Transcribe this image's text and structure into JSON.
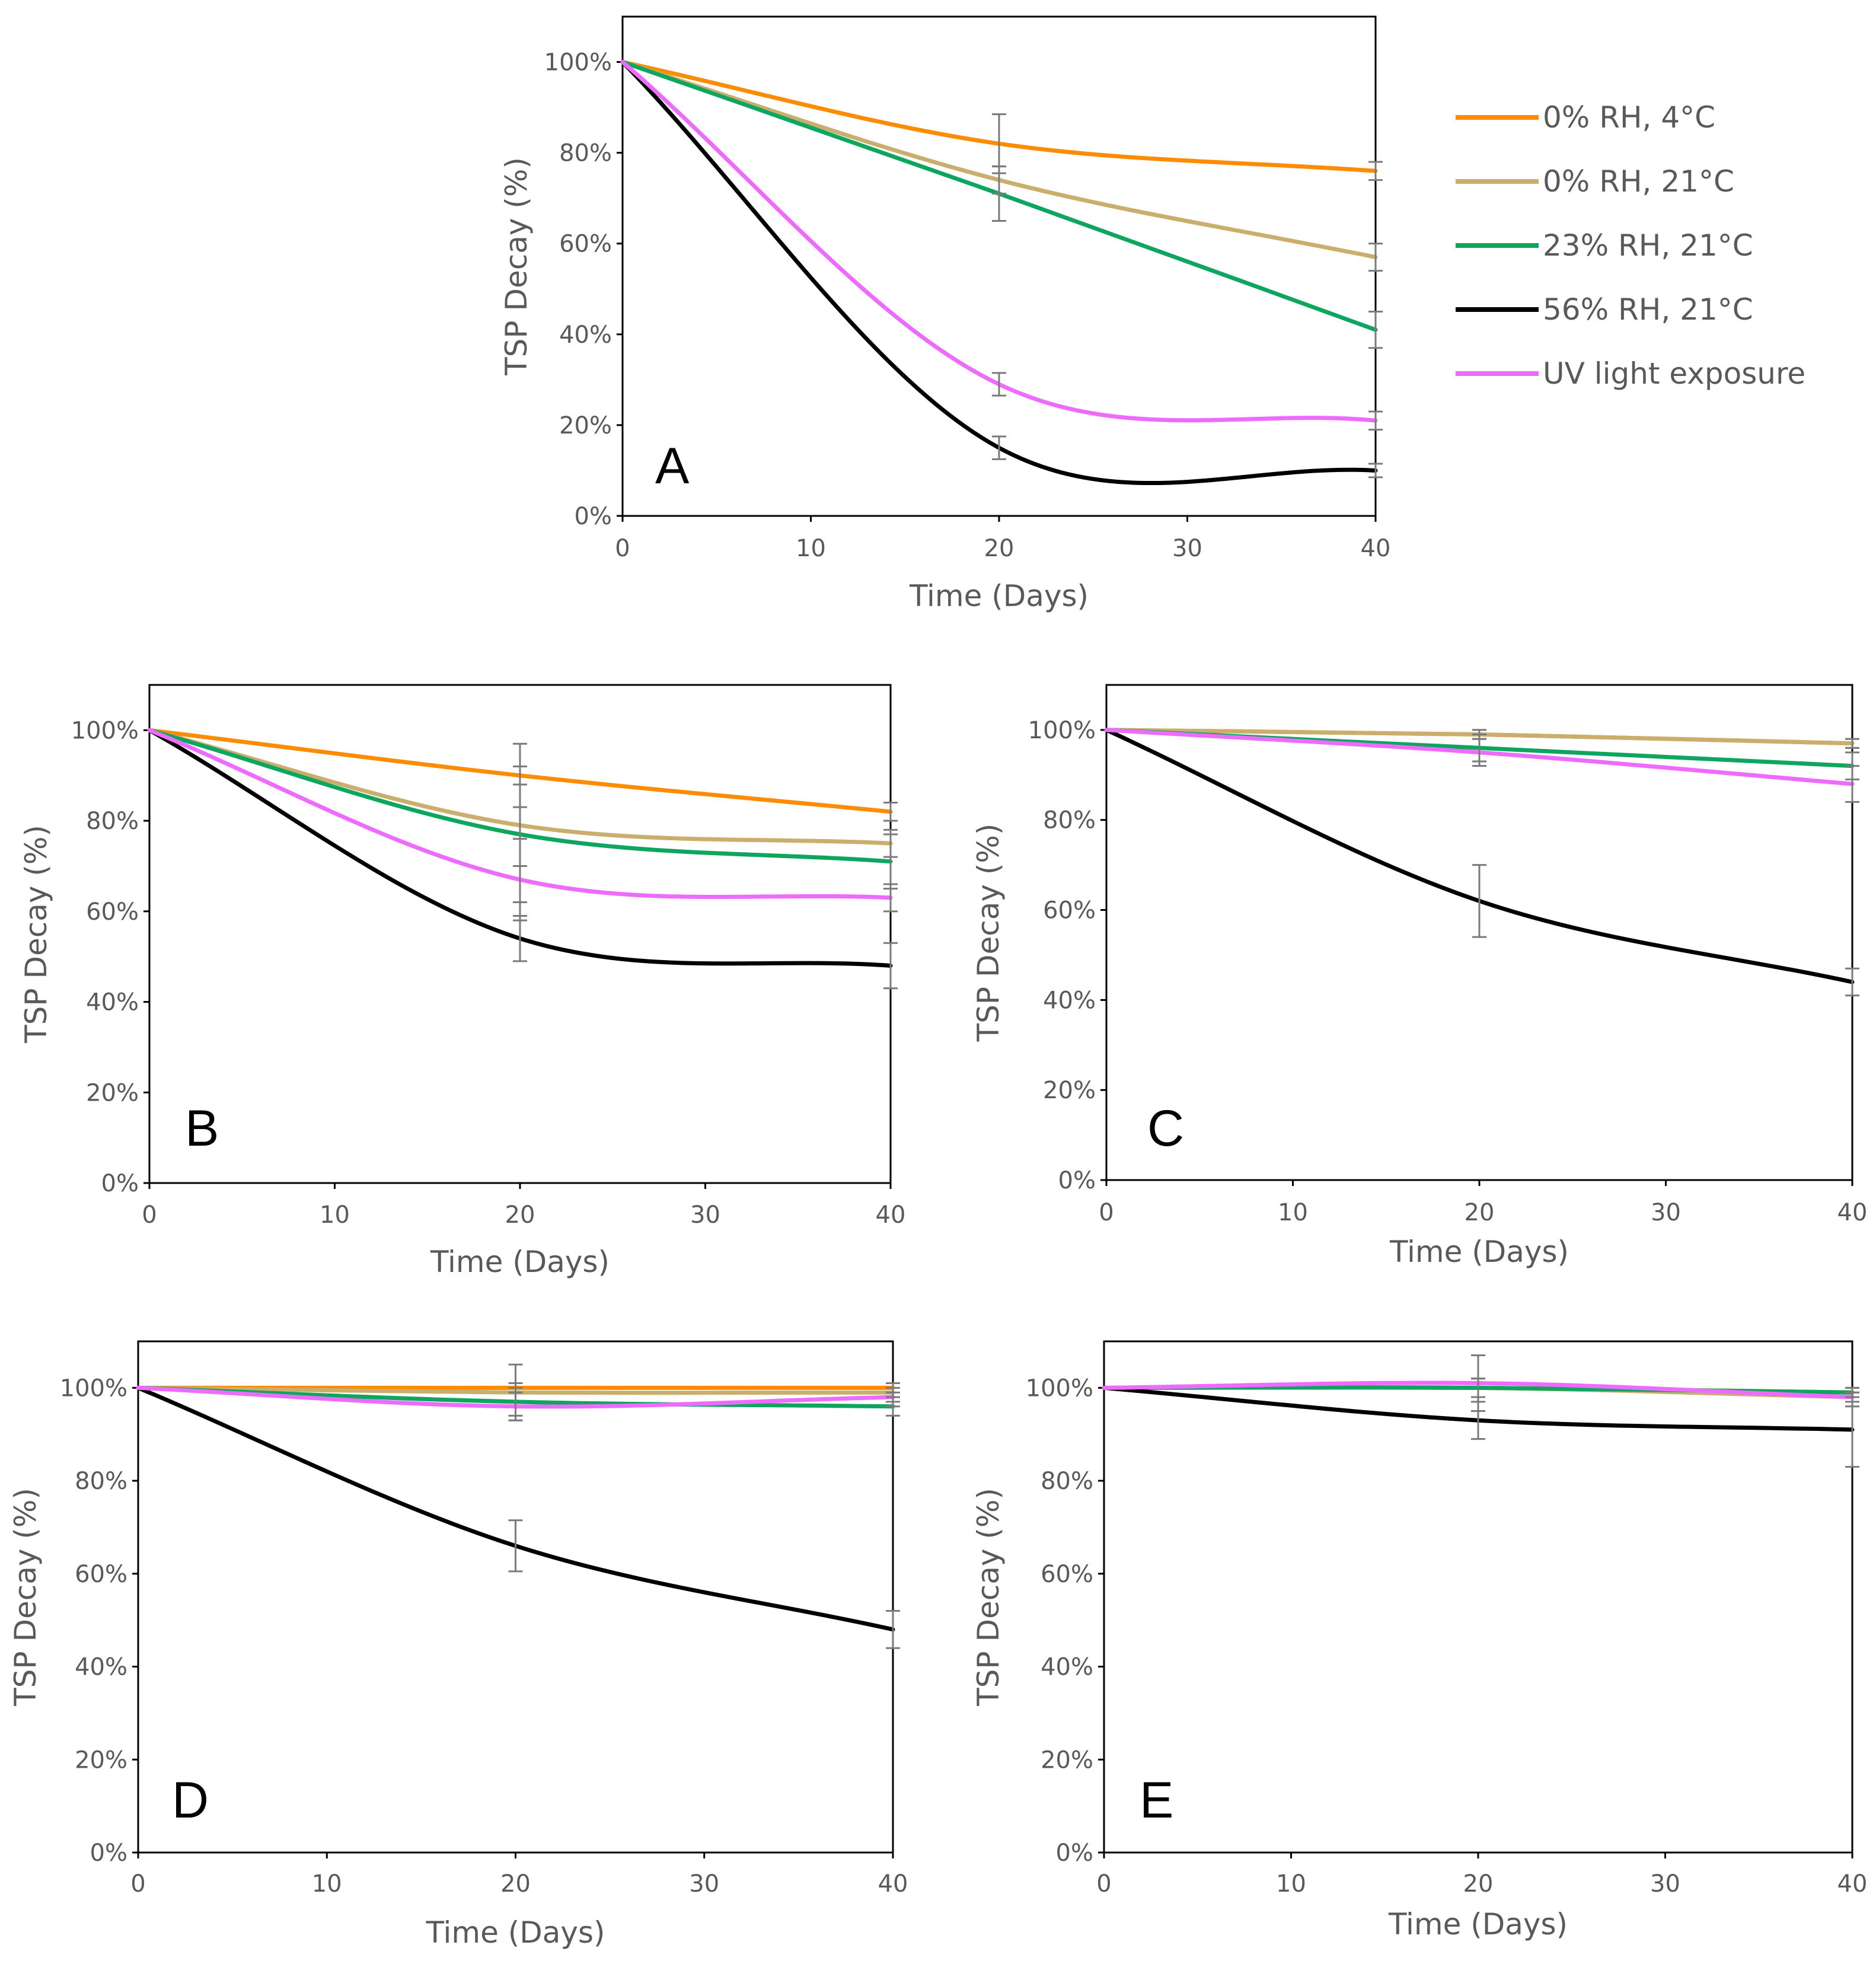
{
  "legend": [
    {
      "label": "0% RH, 4°C",
      "color": "#FF8C00"
    },
    {
      "label": "0% RH, 21°C",
      "color": "#C9AE6E"
    },
    {
      "label": "23% RH, 21°C",
      "color": "#0EA65E"
    },
    {
      "label": "56% RH, 21°C",
      "color": "#000000"
    },
    {
      "label": "UV light exposure",
      "color": "#EE6BFF"
    }
  ],
  "chart_data": [
    {
      "type": "line",
      "panel": "A",
      "xlabel": "Time (Days)",
      "ylabel": "TSP Decay (%)",
      "x_ticks": [
        "0",
        "10",
        "20",
        "30",
        "40"
      ],
      "y_ticks": [
        "0%",
        "20%",
        "40%",
        "60%",
        "80%",
        "100%"
      ],
      "xlim": [
        0,
        40
      ],
      "ylim": [
        0,
        110
      ],
      "x": [
        0,
        20,
        40
      ],
      "series": [
        {
          "name": "0% RH, 4°C",
          "color": "#FF8C00",
          "values": [
            100,
            82,
            76
          ],
          "errors": [
            0,
            6.5,
            2
          ]
        },
        {
          "name": "0% RH, 21°C",
          "color": "#C9AE6E",
          "values": [
            100,
            74,
            57
          ],
          "errors": [
            0,
            3,
            3
          ]
        },
        {
          "name": "23% RH, 21°C",
          "color": "#0EA65E",
          "values": [
            100,
            71,
            41
          ],
          "errors": [
            0,
            6,
            4
          ]
        },
        {
          "name": "56% RH, 21°C",
          "color": "#000000",
          "values": [
            100,
            15,
            10
          ],
          "errors": [
            0,
            2.5,
            1.5
          ]
        },
        {
          "name": "UV light exposure",
          "color": "#EE6BFF",
          "values": [
            100,
            29,
            21
          ],
          "errors": [
            0,
            2.5,
            2
          ]
        }
      ]
    },
    {
      "type": "line",
      "panel": "B",
      "xlabel": "Time (Days)",
      "ylabel": "TSP Decay (%)",
      "x_ticks": [
        "0",
        "10",
        "20",
        "30",
        "40"
      ],
      "y_ticks": [
        "0%",
        "20%",
        "40%",
        "60%",
        "80%",
        "100%"
      ],
      "xlim": [
        0,
        40
      ],
      "ylim": [
        0,
        110
      ],
      "x": [
        0,
        20,
        40
      ],
      "series": [
        {
          "name": "0% RH, 4°C",
          "color": "#FF8C00",
          "values": [
            100,
            90,
            82
          ],
          "errors": [
            0,
            7,
            2
          ]
        },
        {
          "name": "0% RH, 21°C",
          "color": "#C9AE6E",
          "values": [
            100,
            79,
            75
          ],
          "errors": [
            0,
            9,
            3
          ]
        },
        {
          "name": "23% RH, 21°C",
          "color": "#0EA65E",
          "values": [
            100,
            77,
            71
          ],
          "errors": [
            0,
            15,
            6
          ]
        },
        {
          "name": "56% RH, 21°C",
          "color": "#000000",
          "values": [
            100,
            54,
            48
          ],
          "errors": [
            0,
            5,
            5
          ]
        },
        {
          "name": "UV light exposure",
          "color": "#EE6BFF",
          "values": [
            100,
            67,
            63
          ],
          "errors": [
            0,
            9,
            3
          ]
        }
      ]
    },
    {
      "type": "line",
      "panel": "C",
      "xlabel": "Time (Days)",
      "ylabel": "TSP Decay (%)",
      "x_ticks": [
        "0",
        "10",
        "20",
        "30",
        "40"
      ],
      "y_ticks": [
        "0%",
        "20%",
        "40%",
        "60%",
        "80%",
        "100%"
      ],
      "xlim": [
        0,
        40
      ],
      "ylim": [
        0,
        110
      ],
      "x": [
        0,
        20,
        40
      ],
      "series": [
        {
          "name": "0% RH, 4°C",
          "color": "#FF8C00",
          "values": [
            100,
            99,
            97
          ],
          "errors": [
            0,
            1,
            1
          ]
        },
        {
          "name": "0% RH, 21°C",
          "color": "#C9AE6E",
          "values": [
            100,
            99,
            97
          ],
          "errors": [
            0,
            1,
            1
          ]
        },
        {
          "name": "23% RH, 21°C",
          "color": "#0EA65E",
          "values": [
            100,
            96,
            92
          ],
          "errors": [
            0,
            3,
            3
          ]
        },
        {
          "name": "56% RH, 21°C",
          "color": "#000000",
          "values": [
            100,
            62,
            44
          ],
          "errors": [
            0,
            8,
            3
          ]
        },
        {
          "name": "UV light exposure",
          "color": "#EE6BFF",
          "values": [
            100,
            95,
            88
          ],
          "errors": [
            0,
            3,
            4
          ]
        }
      ]
    },
    {
      "type": "line",
      "panel": "D",
      "xlabel": "Time (Days)",
      "ylabel": "TSP Decay (%)",
      "x_ticks": [
        "0",
        "10",
        "20",
        "30",
        "40"
      ],
      "y_ticks": [
        "0%",
        "20%",
        "40%",
        "60%",
        "80%",
        "100%"
      ],
      "xlim": [
        0,
        40
      ],
      "ylim": [
        0,
        110
      ],
      "x": [
        0,
        20,
        40
      ],
      "series": [
        {
          "name": "0% RH, 4°C",
          "color": "#FF8C00",
          "values": [
            100,
            100,
            100
          ],
          "errors": [
            0,
            1,
            1
          ]
        },
        {
          "name": "0% RH, 21°C",
          "color": "#C9AE6E",
          "values": [
            100,
            99,
            99
          ],
          "errors": [
            0,
            6,
            2
          ]
        },
        {
          "name": "23% RH, 21°C",
          "color": "#0EA65E",
          "values": [
            100,
            97,
            96
          ],
          "errors": [
            0,
            3,
            2
          ]
        },
        {
          "name": "56% RH, 21°C",
          "color": "#000000",
          "values": [
            100,
            66,
            48
          ],
          "errors": [
            0,
            5.5,
            4
          ]
        },
        {
          "name": "UV light exposure",
          "color": "#EE6BFF",
          "values": [
            100,
            96,
            98
          ],
          "errors": [
            0,
            3,
            2
          ]
        }
      ]
    },
    {
      "type": "line",
      "panel": "E",
      "xlabel": "Time (Days)",
      "ylabel": "TSP Decay (%)",
      "x_ticks": [
        "0",
        "10",
        "20",
        "30",
        "40"
      ],
      "y_ticks": [
        "0%",
        "20%",
        "40%",
        "60%",
        "80%",
        "100%"
      ],
      "xlim": [
        0,
        40
      ],
      "ylim": [
        0,
        110
      ],
      "x": [
        0,
        20,
        40
      ],
      "series": [
        {
          "name": "0% RH, 4°C",
          "color": "#FF8C00",
          "values": [
            100,
            100,
            99
          ],
          "errors": [
            0,
            2,
            1
          ]
        },
        {
          "name": "0% RH, 21°C",
          "color": "#C9AE6E",
          "values": [
            100,
            100,
            98
          ],
          "errors": [
            0,
            2,
            1
          ]
        },
        {
          "name": "23% RH, 21°C",
          "color": "#0EA65E",
          "values": [
            100,
            100,
            99
          ],
          "errors": [
            0,
            2,
            1
          ]
        },
        {
          "name": "56% RH, 21°C",
          "color": "#000000",
          "values": [
            100,
            93,
            91
          ],
          "errors": [
            0,
            4,
            8
          ]
        },
        {
          "name": "UV light exposure",
          "color": "#EE6BFF",
          "values": [
            100,
            101,
            98
          ],
          "errors": [
            0,
            6,
            2
          ]
        }
      ]
    }
  ]
}
